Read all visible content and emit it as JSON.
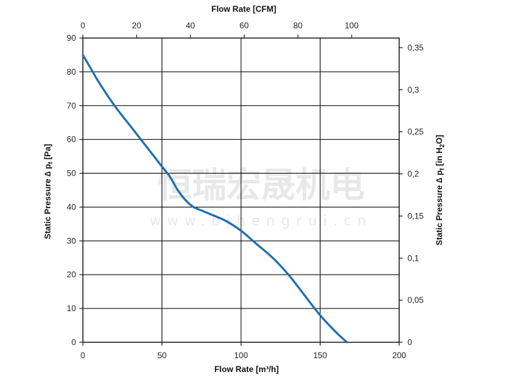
{
  "chart_data": {
    "type": "line",
    "x_bottom": {
      "label": "Flow Rate  [m³/h]",
      "range": [
        0,
        200
      ],
      "ticks": [
        "0",
        "50",
        "100",
        "150",
        "200"
      ]
    },
    "x_top": {
      "label": "Flow Rate  [CFM]",
      "range": [
        0,
        117.7
      ],
      "ticks": [
        "0",
        "20",
        "40",
        "60",
        "80",
        "100"
      ]
    },
    "y_left": {
      "label_prefix": "Static Pressure ∆ p",
      "label_sub": "f",
      "label_suffix": " [Pa]",
      "range": [
        0,
        90
      ],
      "ticks": [
        "0",
        "10",
        "20",
        "30",
        "40",
        "50",
        "60",
        "70",
        "80",
        "90"
      ]
    },
    "y_right": {
      "label_prefix": "Static Pressure ∆ p",
      "label_sub": "f",
      "label_mid": " [in H",
      "label_sub2": "2",
      "label_suffix": "O]",
      "range": [
        0,
        0.3614
      ],
      "ticks": [
        "0",
        "0,05",
        "0,1",
        "0,15",
        "0,2",
        "0,25",
        "0,3",
        "0,35"
      ]
    },
    "grid": true,
    "series": [
      {
        "color": "#1f6fae",
        "x": [
          0,
          5,
          10,
          20,
          30,
          40,
          50,
          55,
          60,
          65,
          70,
          75,
          80,
          90,
          100,
          110,
          120,
          130,
          140,
          150,
          160,
          167
        ],
        "y": [
          85,
          81,
          77,
          70,
          64,
          58,
          52,
          49,
          45,
          42,
          40,
          39,
          38,
          36,
          33,
          29,
          25,
          20,
          14,
          8,
          3,
          0
        ]
      }
    ]
  },
  "watermark": {
    "main": "恒瑞宏晟机电",
    "sub": "www.bjhengrui.cn"
  }
}
